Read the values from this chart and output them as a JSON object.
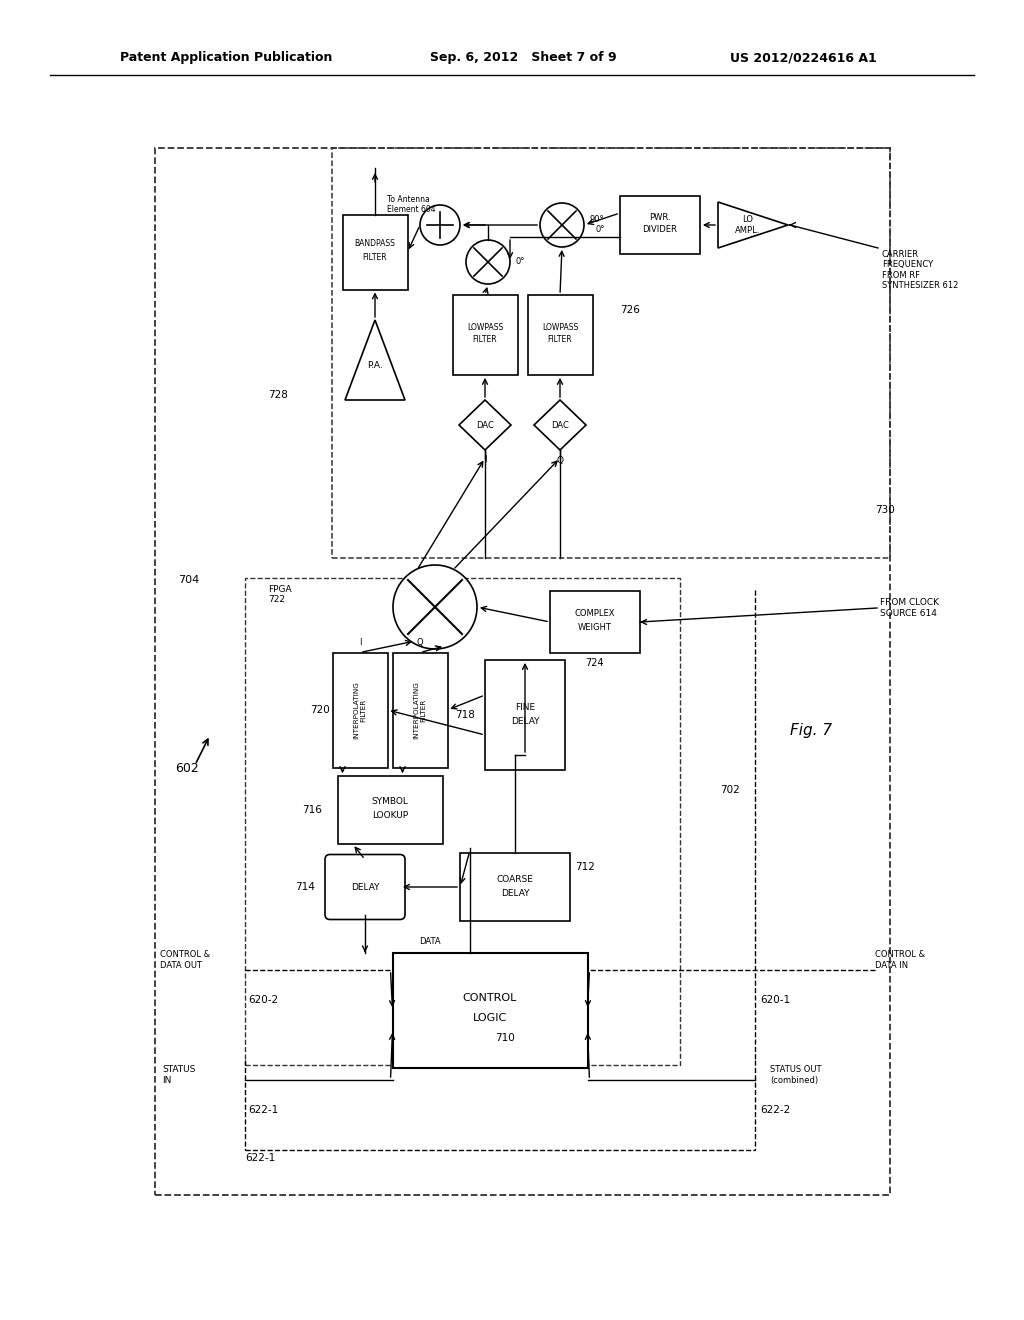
{
  "title_left": "Patent Application Publication",
  "title_center": "Sep. 6, 2012   Sheet 7 of 9",
  "title_right": "US 2012/0224616 A1",
  "fig_label": "Fig. 7",
  "bg_color": "#ffffff",
  "line_color": "#000000",
  "dashed_color": "#444444"
}
